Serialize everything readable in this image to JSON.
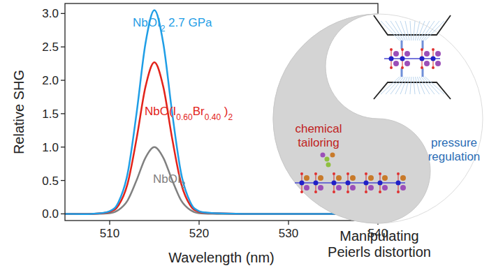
{
  "chart_data": {
    "type": "line",
    "x_label": "Wavelength (nm)",
    "y_label": "Relative SHG",
    "x": [
      505,
      508,
      510,
      511,
      512,
      513,
      514,
      515,
      516,
      517,
      518,
      519,
      520,
      522,
      525,
      530,
      535,
      540
    ],
    "series": [
      {
        "name": "NbOI2 2.7 GPa",
        "color": "#1f9ee6",
        "values": [
          0,
          0,
          0.04,
          0.18,
          0.6,
          1.5,
          2.55,
          3.05,
          2.55,
          1.5,
          0.6,
          0.18,
          0.04,
          0.01,
          0,
          0,
          0,
          0
        ]
      },
      {
        "name": "NbO(I0.60Br0.40 )2",
        "color": "#e2231a",
        "values": [
          0,
          0,
          0.03,
          0.13,
          0.45,
          1.12,
          1.9,
          2.27,
          1.9,
          1.12,
          0.45,
          0.13,
          0.03,
          0.01,
          0,
          0,
          0,
          0
        ]
      },
      {
        "name": "NbOI2",
        "color": "#808080",
        "values": [
          0,
          0,
          0.01,
          0.06,
          0.2,
          0.5,
          0.84,
          1.0,
          0.84,
          0.5,
          0.2,
          0.06,
          0.01,
          0,
          0,
          0,
          0,
          0
        ]
      }
    ],
    "xlim": [
      505,
      540
    ],
    "xticks": [
      510,
      520,
      530,
      540
    ],
    "ylim": [
      -0.1,
      3.15
    ],
    "yticks": [
      {
        "value": 0,
        "label": "0.0"
      },
      {
        "value": 0.5,
        "label": "0.5"
      },
      {
        "value": 1,
        "label": "1.0"
      },
      {
        "value": 1.5,
        "label": "1.5"
      },
      {
        "value": 2,
        "label": "2.0"
      },
      {
        "value": 2.5,
        "label": "2.5"
      },
      {
        "value": 3,
        "label": "3.0"
      }
    ],
    "grid": false
  },
  "panel": {
    "left_label": [
      "chemical",
      "tailoring"
    ],
    "right_label": [
      "pressure",
      "regulation"
    ],
    "caption": [
      "Manipulating",
      "Peierls distortion"
    ]
  }
}
